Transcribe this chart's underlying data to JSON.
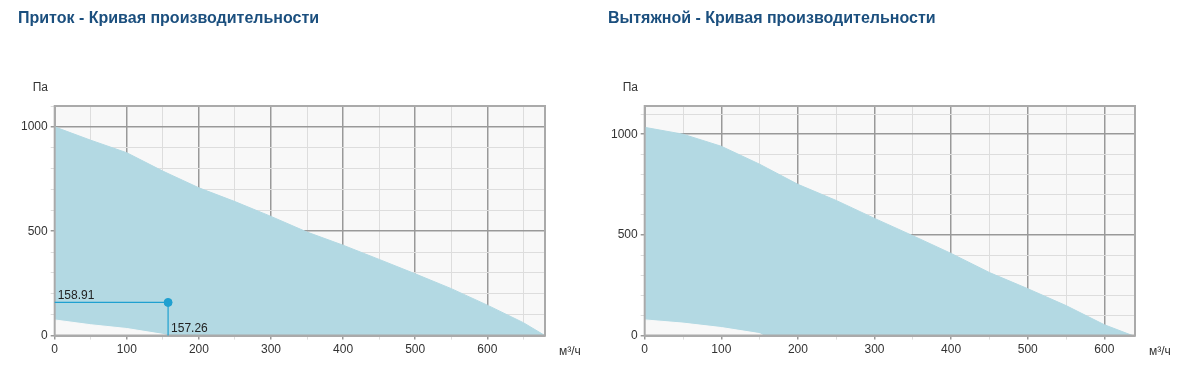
{
  "chart_data": [
    {
      "type": "area",
      "title": "Приток - Кривая производительности",
      "xlabel": "м³/ч",
      "ylabel": "Па",
      "xlim": [
        0,
        680
      ],
      "ylim": [
        0,
        1100
      ],
      "xticks": [
        0,
        {
          "value": 50,
          "label": null
        },
        100,
        {
          "value": 150,
          "label": null
        },
        200,
        {
          "value": 250,
          "label": null
        },
        300,
        {
          "value": 350,
          "label": null
        },
        400,
        {
          "value": 450,
          "label": null
        },
        500,
        {
          "value": 550,
          "label": null
        },
        600,
        {
          "value": 650,
          "label": null
        }
      ],
      "yticks": [
        0,
        {
          "value": 100,
          "label": null
        },
        {
          "value": 200,
          "label": null
        },
        {
          "value": 300,
          "label": null
        },
        {
          "value": 400,
          "label": null
        },
        500,
        {
          "value": 600,
          "label": null
        },
        {
          "value": 700,
          "label": null
        },
        {
          "value": 800,
          "label": null
        },
        {
          "value": 900,
          "label": null
        },
        1000,
        {
          "value": 1100,
          "label": null
        }
      ],
      "grid": true,
      "legend": false,
      "series": [
        {
          "color": "#b3d9e3",
          "x": [
            0,
            50,
            100,
            150,
            160,
            200,
            250,
            300,
            350,
            400,
            450,
            500,
            550,
            600,
            650,
            680
          ],
          "values": [
            1000,
            936,
            876,
            788,
            772,
            708,
            642,
            571,
            496,
            433,
            365,
            296,
            225,
            146,
            62,
            0
          ]
        },
        {
          "color": "#f8f8f8",
          "x": [
            0,
            50,
            100,
            150,
            157
          ],
          "values": [
            75,
            52,
            34,
            6,
            0
          ]
        },
        {
          "type": "scatter",
          "color": "#1fa0d0",
          "marker": "circle",
          "x": [
            157.26
          ],
          "values": [
            158.91
          ]
        }
      ],
      "annotations": [
        {
          "text": "158.91",
          "x": 0,
          "y": 158.91
        },
        {
          "text": "157.26",
          "x": 157.26,
          "y": 0
        }
      ]
    },
    {
      "type": "area",
      "title": "Вытяжной - Кривая производительности",
      "xlabel": "м³/ч",
      "ylabel": "Па",
      "xlim": [
        0,
        640
      ],
      "ylim": [
        0,
        1140
      ],
      "xticks": [
        0,
        {
          "value": 50,
          "label": null
        },
        100,
        {
          "value": 150,
          "label": null
        },
        200,
        {
          "value": 250,
          "label": null
        },
        300,
        {
          "value": 350,
          "label": null
        },
        400,
        {
          "value": 450,
          "label": null
        },
        500,
        {
          "value": 550,
          "label": null
        },
        600
      ],
      "yticks": [
        0,
        {
          "value": 100,
          "label": null
        },
        {
          "value": 200,
          "label": null
        },
        {
          "value": 300,
          "label": null
        },
        {
          "value": 400,
          "label": null
        },
        500,
        {
          "value": 600,
          "label": null
        },
        {
          "value": 700,
          "label": null
        },
        {
          "value": 800,
          "label": null
        },
        {
          "value": 900,
          "label": null
        },
        1000,
        {
          "value": 1100,
          "label": null
        }
      ],
      "grid": true,
      "legend": false,
      "series": [
        {
          "color": "#b3d9e3",
          "x": [
            0,
            50,
            100,
            150,
            160,
            200,
            250,
            300,
            350,
            400,
            450,
            500,
            550,
            600,
            637
          ],
          "values": [
            1034,
            1000,
            940,
            851,
            831,
            751,
            671,
            582,
            496,
            408,
            313,
            233,
            149,
            54,
            0
          ]
        },
        {
          "color": "#f8f8f8",
          "x": [
            0,
            50,
            100,
            150,
            155
          ],
          "values": [
            78,
            62,
            40,
            10,
            0
          ]
        }
      ]
    }
  ]
}
